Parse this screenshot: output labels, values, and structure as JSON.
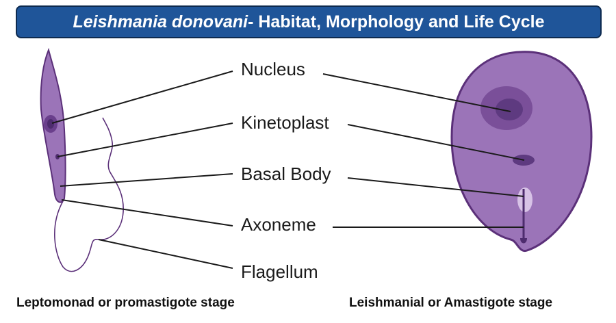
{
  "title": {
    "italic_part": "Leishmania donovani",
    "rest": "- Habitat, Morphology and Life Cycle"
  },
  "labels": {
    "nucleus": "Nucleus",
    "kinetoplast": "Kinetoplast",
    "basal_body": "Basal Body",
    "axoneme": "Axoneme",
    "flagellum": "Flagellum"
  },
  "captions": {
    "left": "Leptomonad or promastigote stage",
    "right": "Leishmanial or Amastigote stage"
  },
  "colors": {
    "banner": "#1f5599",
    "cell_fill": "#9b74b8",
    "cell_stroke": "#5b3079",
    "nucleus_outer": "#7a4f99",
    "nucleus_inner": "#5e3a80",
    "line": "#1a1a1a"
  }
}
